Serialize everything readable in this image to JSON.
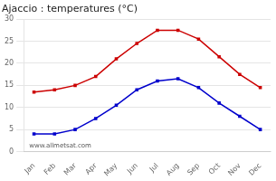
{
  "chart_data": {
    "type": "line",
    "title": "Ajaccio : temperatures (°C)",
    "categories": [
      "Jan",
      "Feb",
      "Mar",
      "Apr",
      "May",
      "Jun",
      "Jul",
      "Aug",
      "Sep",
      "Oct",
      "Nov",
      "Dec"
    ],
    "series": [
      {
        "color": "#cc0000",
        "values": [
          13.5,
          14.0,
          15.0,
          17.0,
          21.0,
          24.5,
          27.5,
          27.5,
          25.5,
          21.5,
          17.5,
          14.5
        ]
      },
      {
        "color": "#0000cc",
        "values": [
          4.0,
          4.0,
          5.0,
          7.5,
          10.5,
          14.0,
          16.0,
          16.5,
          14.5,
          11.0,
          8.0,
          5.0
        ]
      }
    ],
    "marker": "square",
    "ylim": [
      0,
      30
    ],
    "yticks": [
      0,
      5,
      10,
      15,
      20,
      25,
      30
    ],
    "grid": "y",
    "annotations": [
      "www.allmetsat.com"
    ]
  }
}
